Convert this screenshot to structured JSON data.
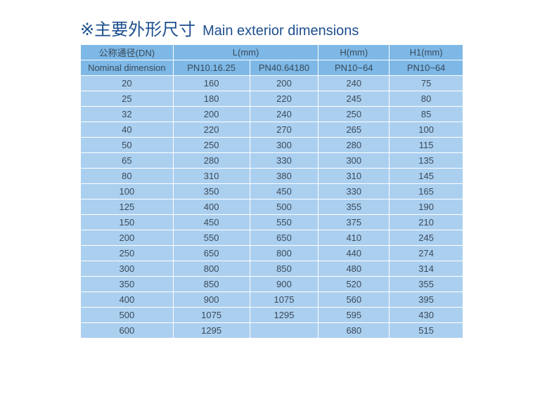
{
  "title": {
    "cn": "※主要外形尺寸",
    "en": "Main exterior dimensions"
  },
  "header": {
    "dn_cn": "公称通径(DN)",
    "dn_en": "Nominal dimension",
    "l": "L(mm)",
    "h": "H(mm)",
    "h1": "H1(mm)",
    "l_sub1": "PN10.16.25",
    "l_sub2": "PN40.64180",
    "h_sub": "PN10~64",
    "h1_sub": "PN10~64"
  },
  "rows": [
    [
      "20",
      "160",
      "200",
      "240",
      "75"
    ],
    [
      "25",
      "180",
      "220",
      "245",
      "80"
    ],
    [
      "32",
      "200",
      "240",
      "250",
      "85"
    ],
    [
      "40",
      "220",
      "270",
      "265",
      "100"
    ],
    [
      "50",
      "250",
      "300",
      "280",
      "115"
    ],
    [
      "65",
      "280",
      "330",
      "300",
      "135"
    ],
    [
      "80",
      "310",
      "380",
      "310",
      "145"
    ],
    [
      "100",
      "350",
      "450",
      "330",
      "165"
    ],
    [
      "125",
      "400",
      "500",
      "355",
      "190"
    ],
    [
      "150",
      "450",
      "550",
      "375",
      "210"
    ],
    [
      "200",
      "550",
      "650",
      "410",
      "245"
    ],
    [
      "250",
      "650",
      "800",
      "440",
      "274"
    ],
    [
      "300",
      "800",
      "850",
      "480",
      "314"
    ],
    [
      "350",
      "850",
      "900",
      "520",
      "355"
    ],
    [
      "400",
      "900",
      "1075",
      "560",
      "395"
    ],
    [
      "500",
      "1075",
      "1295",
      "595",
      "430"
    ],
    [
      "600",
      "1295",
      "",
      "680",
      "515"
    ]
  ]
}
